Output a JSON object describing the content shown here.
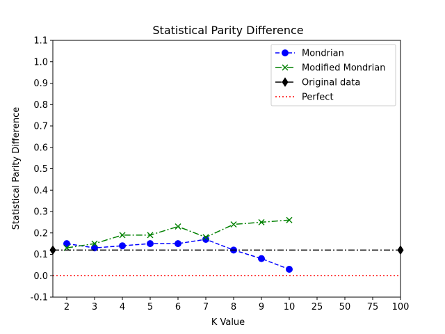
{
  "chart_data": {
    "type": "line",
    "title": "Statistical Parity Difference",
    "xlabel": "K Value",
    "ylabel": "Statistical Parity Difference",
    "categories": [
      "2",
      "3",
      "4",
      "5",
      "6",
      "7",
      "8",
      "9",
      "10",
      "25",
      "50",
      "75",
      "100"
    ],
    "ylim": [
      -0.1,
      1.1
    ],
    "yticks": [
      "-0.1",
      "0.0",
      "0.1",
      "0.2",
      "0.3",
      "0.4",
      "0.5",
      "0.6",
      "0.7",
      "0.8",
      "0.9",
      "1.0",
      "1.1"
    ],
    "grid": false,
    "legend_position": "top-right",
    "series": [
      {
        "name": "Mondrian",
        "color": "#0000ff",
        "linestyle": "dashed",
        "marker": "circle",
        "values": [
          0.15,
          0.13,
          0.14,
          0.15,
          0.15,
          0.17,
          0.12,
          0.08,
          0.03,
          null,
          null,
          null,
          null
        ]
      },
      {
        "name": "Modified Mondrian",
        "color": "#008000",
        "linestyle": "dashdot",
        "marker": "x",
        "values": [
          0.13,
          0.15,
          0.19,
          0.19,
          0.23,
          0.18,
          0.24,
          0.25,
          0.26,
          null,
          null,
          null,
          null
        ]
      },
      {
        "name": "Original data",
        "color": "#000000",
        "linestyle": "dashdot",
        "marker": "diamond",
        "horizontal_line": 0.12
      },
      {
        "name": "Perfect",
        "color": "#ff0000",
        "linestyle": "dotted",
        "marker": "none",
        "horizontal_line": 0.0
      }
    ]
  }
}
